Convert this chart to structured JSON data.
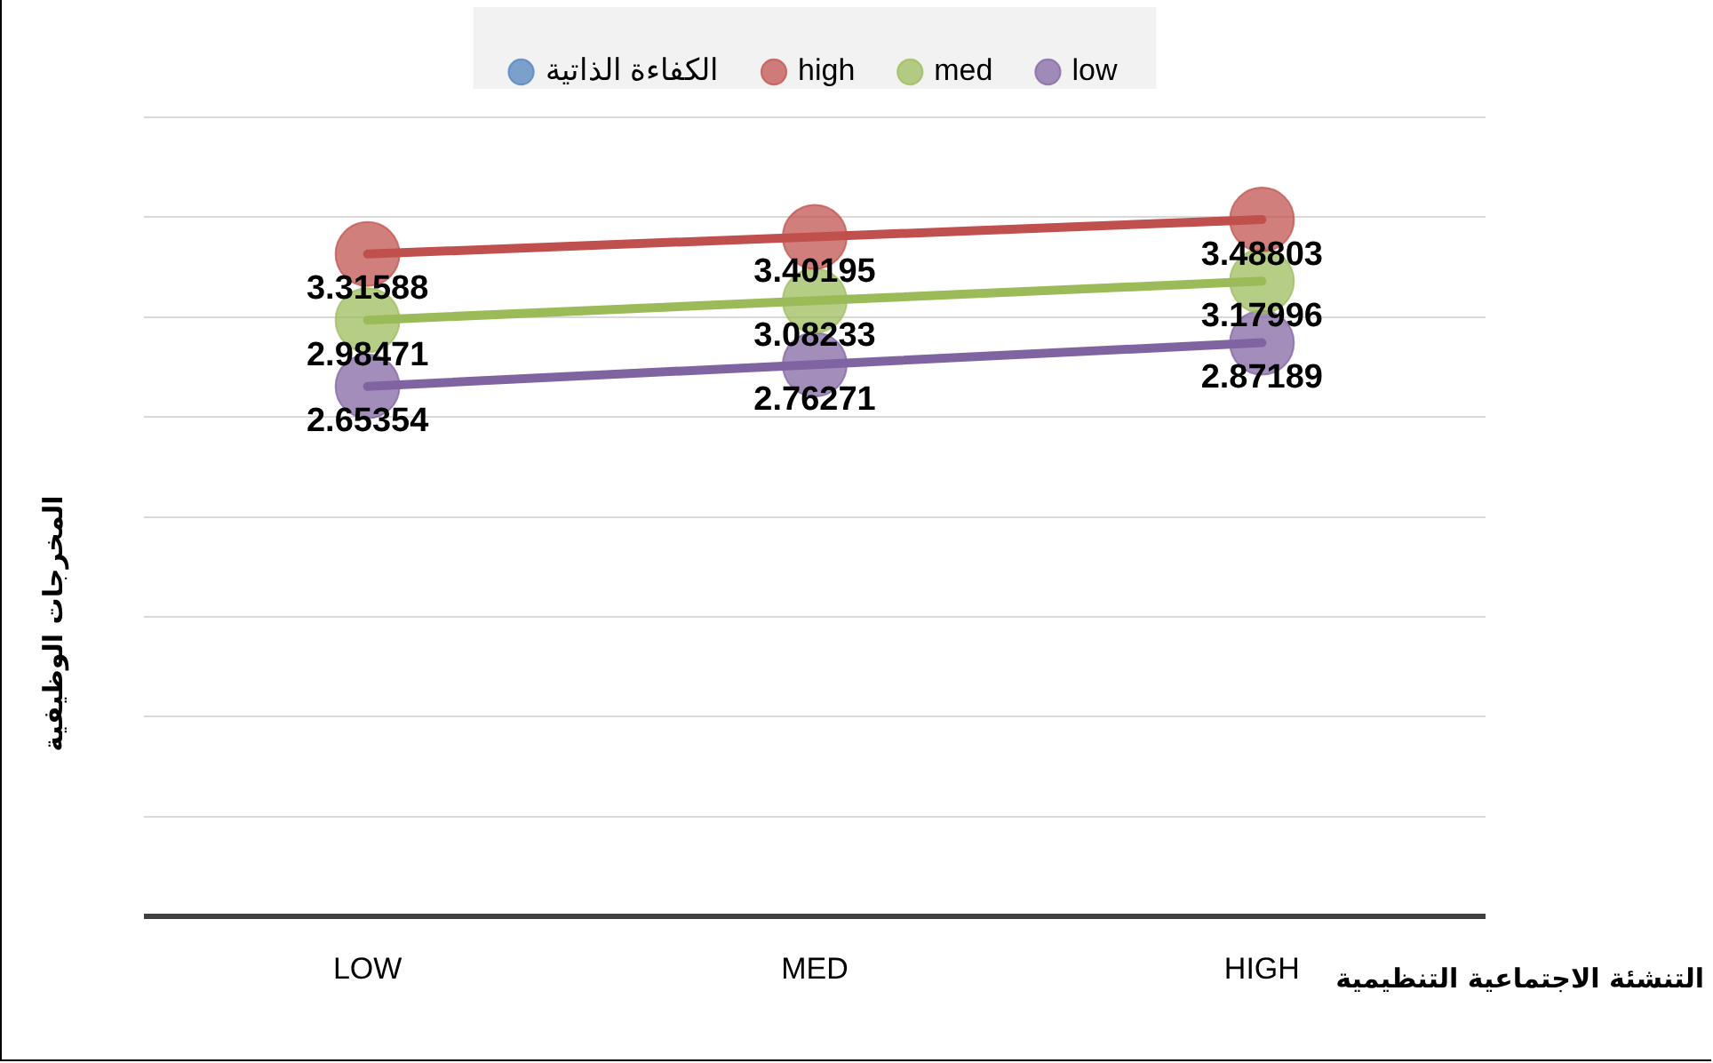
{
  "chart_data": {
    "type": "line",
    "xlabel": "التنشئة الاجتماعية التنظيمية",
    "ylabel": "المخرجات الوظيفية",
    "categories": [
      "LOW",
      "MED",
      "HIGH"
    ],
    "series": [
      {
        "name": "الكفاءة الذاتية",
        "type": "scatter",
        "color": "#4f81bd",
        "values": [
          null,
          null,
          null
        ]
      },
      {
        "name": "high",
        "color": "#c0504d",
        "values": [
          3.31588,
          3.40195,
          3.48803
        ]
      },
      {
        "name": "med",
        "color": "#9bbb59",
        "values": [
          2.98471,
          3.08233,
          3.17996
        ]
      },
      {
        "name": "low",
        "color": "#8064a2",
        "values": [
          2.65354,
          2.76271,
          2.87189
        ]
      }
    ],
    "ylim": [
      0,
      4
    ],
    "yticks": [
      {
        "value": 0,
        "label": null
      },
      {
        "value": 0.5,
        "label": null
      },
      {
        "value": 1,
        "label": null
      },
      {
        "value": 1.5,
        "label": null
      },
      {
        "value": 2,
        "label": null
      },
      {
        "value": 2.5,
        "label": null
      },
      {
        "value": 3,
        "label": null
      },
      {
        "value": 3.5,
        "label": null
      },
      {
        "value": 4,
        "label": null
      }
    ],
    "tick_labels": "x",
    "grid": "y",
    "legend": "top",
    "marker": "circle",
    "line_style": "solid",
    "data_labels": true
  }
}
